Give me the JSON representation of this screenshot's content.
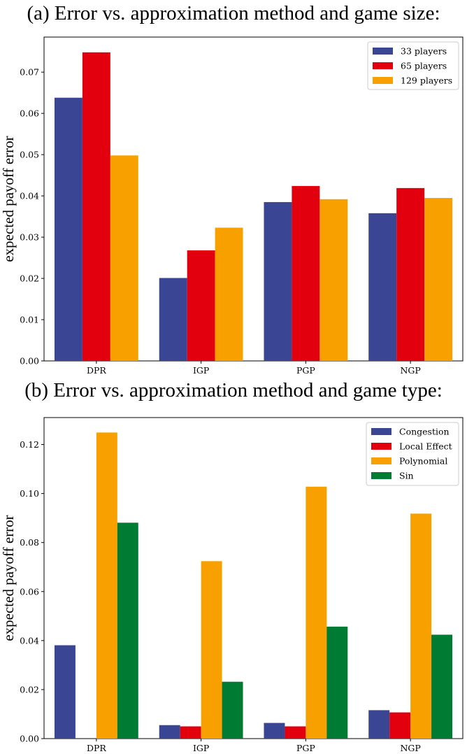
{
  "chart_data": [
    {
      "type": "bar",
      "title": "(a) Error vs. approximation method and game size:",
      "xlabel": "",
      "ylabel": "expected payoff error",
      "categories": [
        "DPR",
        "IGP",
        "PGP",
        "NGP"
      ],
      "ylim": [
        0,
        0.0785
      ],
      "yticks": [
        0.0,
        0.01,
        0.02,
        0.03,
        0.04,
        0.05,
        0.06,
        0.07
      ],
      "ytick_labels": [
        "0.00",
        "0.01",
        "0.02",
        "0.03",
        "0.04",
        "0.05",
        "0.06",
        "0.07"
      ],
      "legend_position": "top-right",
      "series": [
        {
          "name": "33 players",
          "color": "#3a4694",
          "values": [
            0.0638,
            0.0201,
            0.0385,
            0.0358
          ]
        },
        {
          "name": "65 players",
          "color": "#e2000f",
          "values": [
            0.0748,
            0.0268,
            0.0424,
            0.0419
          ]
        },
        {
          "name": "129 players",
          "color": "#f7a000",
          "values": [
            0.0498,
            0.0323,
            0.0392,
            0.0395
          ]
        }
      ]
    },
    {
      "type": "bar",
      "title": "(b) Error vs. approximation method and game type:",
      "xlabel": "",
      "ylabel": "expected payoff error",
      "categories": [
        "DPR",
        "IGP",
        "PGP",
        "NGP"
      ],
      "ylim": [
        0,
        0.131
      ],
      "yticks": [
        0.0,
        0.02,
        0.04,
        0.06,
        0.08,
        0.1,
        0.12
      ],
      "ytick_labels": [
        "0.00",
        "0.02",
        "0.04",
        "0.06",
        "0.08",
        "0.10",
        "0.12"
      ],
      "legend_position": "top-right",
      "series": [
        {
          "name": "Congestion",
          "color": "#3a4694",
          "values": [
            0.0381,
            0.0055,
            0.0064,
            0.0116
          ]
        },
        {
          "name": "Local Effect",
          "color": "#e2000f",
          "values": [
            0.0,
            0.005,
            0.005,
            0.0107
          ]
        },
        {
          "name": "Polynomial",
          "color": "#f7a000",
          "values": [
            0.1249,
            0.0724,
            0.1028,
            0.0918
          ]
        },
        {
          "name": "Sin",
          "color": "#007b33",
          "values": [
            0.0881,
            0.0232,
            0.0457,
            0.0424
          ]
        }
      ]
    }
  ]
}
